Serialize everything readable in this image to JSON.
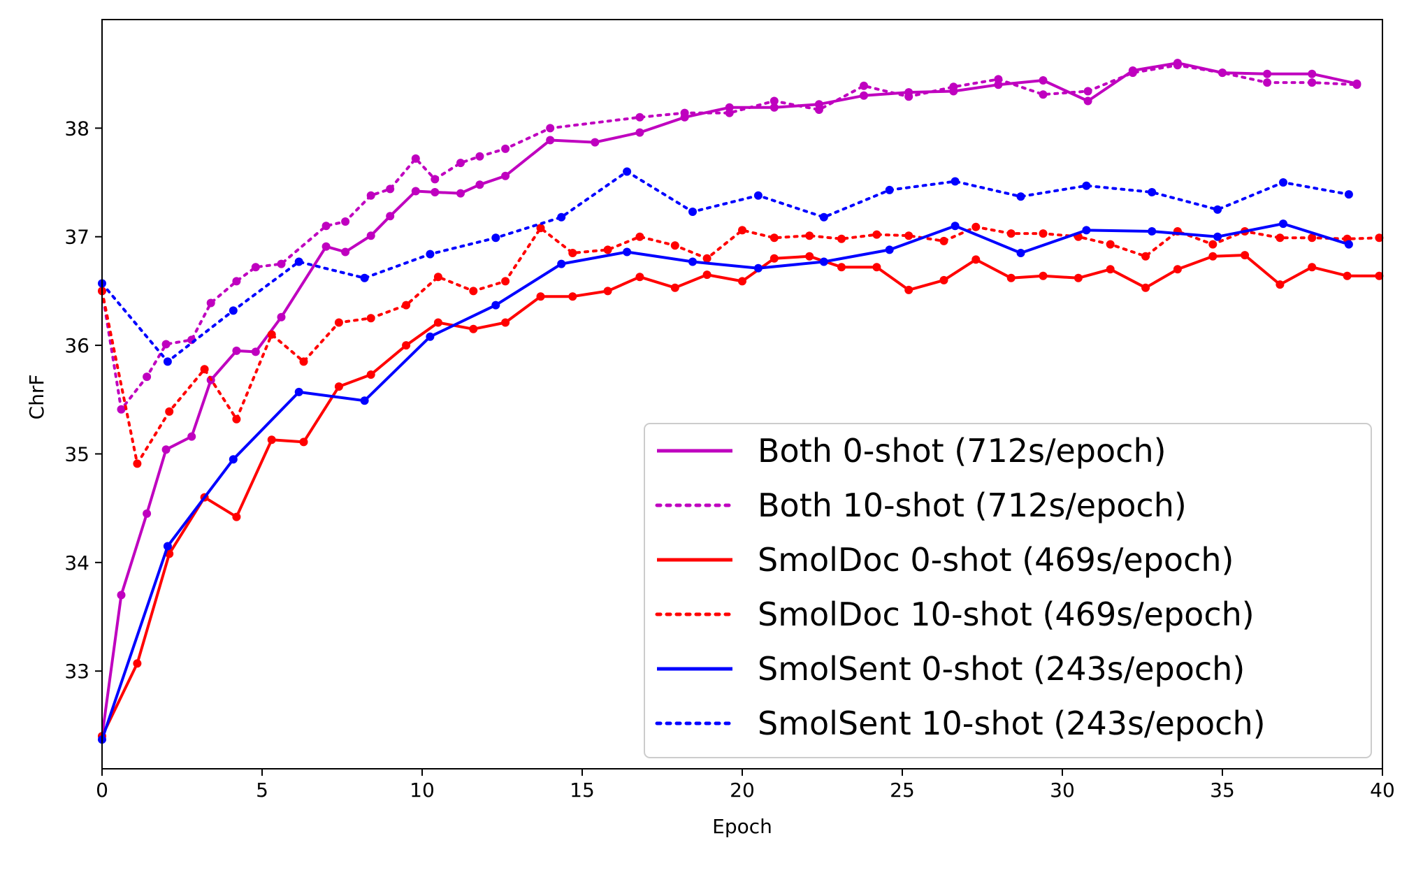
{
  "chart_data": {
    "type": "line",
    "title": "",
    "xlabel": "Epoch",
    "ylabel": "ChrF",
    "xlim": [
      0,
      40
    ],
    "ylim": [
      32.1,
      39.0
    ],
    "xticks": [
      0,
      5,
      10,
      15,
      20,
      25,
      30,
      35,
      40
    ],
    "yticks": [
      33,
      34,
      35,
      36,
      37,
      38
    ],
    "grid": false,
    "legend_position": "lower-right",
    "series": [
      {
        "name": "Both 0-shot (712s/epoch)",
        "color": "#bf00bf",
        "dash": "solid",
        "x": [
          0,
          0.6,
          1.4,
          2.0,
          2.8,
          3.4,
          4.2,
          4.8,
          5.6,
          7.0,
          7.6,
          8.4,
          9.0,
          9.8,
          10.4,
          11.2,
          11.8,
          12.6,
          14.0,
          15.4,
          16.8,
          18.2,
          19.6,
          21.0,
          22.4,
          23.8,
          25.2,
          26.6,
          28.0,
          29.4,
          30.8,
          32.2,
          33.6,
          35.0,
          36.4,
          37.8,
          39.2
        ],
        "y": [
          32.4,
          33.7,
          34.45,
          35.04,
          35.16,
          35.68,
          35.95,
          35.94,
          36.26,
          36.91,
          36.86,
          37.01,
          37.19,
          37.42,
          37.41,
          37.4,
          37.48,
          37.56,
          37.89,
          37.87,
          37.96,
          38.1,
          38.19,
          38.19,
          38.22,
          38.3,
          38.33,
          38.34,
          38.4,
          38.44,
          38.25,
          38.53,
          38.6,
          38.51,
          38.5,
          38.5,
          38.41
        ]
      },
      {
        "name": "Both 10-shot (712s/epoch)",
        "color": "#bf00bf",
        "dash": "dotted",
        "x": [
          0,
          0.6,
          1.4,
          2.0,
          2.8,
          3.4,
          4.2,
          4.8,
          5.6,
          7.0,
          7.6,
          8.4,
          9.0,
          9.8,
          10.4,
          11.2,
          11.8,
          12.6,
          14.0,
          16.8,
          18.2,
          19.6,
          21.0,
          22.4,
          23.8,
          25.2,
          26.6,
          28.0,
          29.4,
          30.8,
          32.2,
          33.6,
          35.0,
          36.4,
          37.8,
          39.2
        ],
        "y": [
          36.5,
          35.41,
          35.71,
          36.01,
          36.05,
          36.39,
          36.59,
          36.72,
          36.75,
          37.1,
          37.14,
          37.38,
          37.44,
          37.72,
          37.53,
          37.68,
          37.74,
          37.81,
          38.0,
          38.1,
          38.14,
          38.14,
          38.25,
          38.17,
          38.39,
          38.29,
          38.38,
          38.45,
          38.31,
          38.34,
          38.51,
          38.58,
          38.51,
          38.42,
          38.42,
          38.4
        ]
      },
      {
        "name": "SmolDoc 0-shot (469s/epoch)",
        "color": "#ff0000",
        "dash": "solid",
        "x": [
          0,
          1.1,
          2.1,
          3.2,
          4.2,
          5.3,
          6.3,
          7.4,
          8.4,
          9.5,
          10.5,
          11.6,
          12.6,
          13.7,
          14.7,
          15.8,
          16.8,
          17.9,
          18.9,
          20.0,
          21.0,
          22.1,
          23.1,
          24.2,
          25.2,
          26.3,
          27.3,
          28.4,
          29.4,
          30.5,
          31.5,
          32.6,
          33.6,
          34.7,
          35.7,
          36.8,
          37.8,
          38.9,
          39.9
        ],
        "y": [
          32.4,
          33.07,
          34.08,
          34.6,
          34.42,
          35.13,
          35.11,
          35.62,
          35.73,
          36.0,
          36.21,
          36.15,
          36.21,
          36.45,
          36.45,
          36.5,
          36.63,
          36.53,
          36.65,
          36.59,
          36.8,
          36.82,
          36.72,
          36.72,
          36.51,
          36.6,
          36.79,
          36.62,
          36.64,
          36.62,
          36.7,
          36.53,
          36.7,
          36.82,
          36.83,
          36.56,
          36.72,
          36.64,
          36.64
        ]
      },
      {
        "name": "SmolDoc 10-shot (469s/epoch)",
        "color": "#ff0000",
        "dash": "dotted",
        "x": [
          0,
          1.1,
          2.1,
          3.2,
          4.2,
          5.3,
          6.3,
          7.4,
          8.4,
          9.5,
          10.5,
          11.6,
          12.6,
          13.7,
          14.7,
          15.8,
          16.8,
          17.9,
          18.9,
          20.0,
          21.0,
          22.1,
          23.1,
          24.2,
          25.2,
          26.3,
          27.3,
          28.4,
          29.4,
          30.5,
          31.5,
          32.6,
          33.6,
          34.7,
          35.7,
          36.8,
          37.8,
          38.9,
          39.9
        ],
        "y": [
          36.5,
          34.91,
          35.39,
          35.78,
          35.32,
          36.1,
          35.85,
          36.21,
          36.25,
          36.37,
          36.63,
          36.5,
          36.59,
          37.08,
          36.85,
          36.88,
          37.0,
          36.92,
          36.8,
          37.06,
          36.99,
          37.01,
          36.98,
          37.02,
          37.01,
          36.96,
          37.09,
          37.03,
          37.03,
          37.0,
          36.93,
          36.82,
          37.05,
          36.93,
          37.05,
          36.99,
          36.99,
          36.98,
          36.99
        ]
      },
      {
        "name": "SmolSent 0-shot (243s/epoch)",
        "color": "#0000ff",
        "dash": "solid",
        "x": [
          0,
          2.05,
          4.1,
          6.15,
          8.2,
          10.25,
          12.3,
          14.35,
          16.4,
          18.45,
          20.5,
          22.55,
          24.6,
          26.65,
          28.7,
          30.75,
          32.8,
          34.85,
          36.9,
          38.95
        ],
        "y": [
          32.37,
          34.15,
          34.95,
          35.57,
          35.49,
          36.08,
          36.37,
          36.75,
          36.86,
          36.77,
          36.71,
          36.77,
          36.88,
          37.1,
          36.85,
          37.06,
          37.05,
          37.0,
          37.12,
          36.93
        ]
      },
      {
        "name": "SmolSent 10-shot (243s/epoch)",
        "color": "#0000ff",
        "dash": "dotted",
        "x": [
          0,
          2.05,
          4.1,
          6.15,
          8.2,
          10.25,
          12.3,
          14.35,
          16.4,
          18.45,
          20.5,
          22.55,
          24.6,
          26.65,
          28.7,
          30.75,
          32.8,
          34.85,
          36.9,
          38.95
        ],
        "y": [
          36.57,
          35.85,
          36.32,
          36.77,
          36.62,
          36.84,
          36.99,
          37.18,
          37.6,
          37.23,
          37.38,
          37.18,
          37.43,
          37.51,
          37.37,
          37.47,
          37.41,
          37.25,
          37.5,
          37.39
        ]
      }
    ]
  }
}
